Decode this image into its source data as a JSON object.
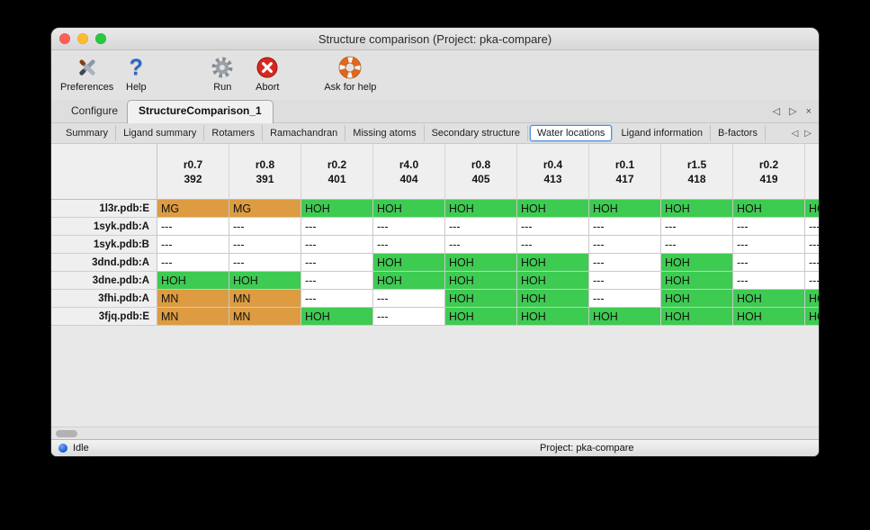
{
  "colors": {
    "water_cell": "#3ecb52",
    "metal_cell": "#dd9c41",
    "absent_cell": "#ffffff",
    "close_button": "#ff5f57",
    "minimize_button": "#febc2e",
    "zoom_button": "#28c840",
    "selected_subtab_border": "#4f8fdd",
    "status_dot": "#1d5fd6"
  },
  "window": {
    "title": "Structure comparison (Project: pka-compare)"
  },
  "toolbar": {
    "items": [
      {
        "label": "Preferences"
      },
      {
        "label": "Help"
      },
      {
        "label": "Run"
      },
      {
        "label": "Abort"
      },
      {
        "label": "Ask for help"
      }
    ]
  },
  "icons": {
    "nav_prev": "◁",
    "nav_next": "▷",
    "close_tab": "×",
    "help_glyph": "?"
  },
  "main_tabs": {
    "items": [
      {
        "label": "Configure"
      },
      {
        "label": "StructureComparison_1"
      }
    ]
  },
  "sub_tabs": {
    "items": [
      {
        "label": "Summary"
      },
      {
        "label": "Ligand summary"
      },
      {
        "label": "Rotamers"
      },
      {
        "label": "Ramachandran"
      },
      {
        "label": "Missing atoms"
      },
      {
        "label": "Secondary structure"
      },
      {
        "label": "Water locations",
        "selected": true
      },
      {
        "label": "Ligand information"
      },
      {
        "label": "B-factors"
      }
    ]
  },
  "table": {
    "columns": [
      {
        "line1": "r0.7",
        "line2": "392"
      },
      {
        "line1": "r0.8",
        "line2": "391"
      },
      {
        "line1": "r0.2",
        "line2": "401"
      },
      {
        "line1": "r4.0",
        "line2": "404"
      },
      {
        "line1": "r0.8",
        "line2": "405"
      },
      {
        "line1": "r0.4",
        "line2": "413"
      },
      {
        "line1": "r0.1",
        "line2": "417"
      },
      {
        "line1": "r1.5",
        "line2": "418"
      },
      {
        "line1": "r0.2",
        "line2": "419"
      },
      {
        "line1": "",
        "line2": ""
      }
    ],
    "rows": [
      {
        "label": "1l3r.pdb:E",
        "cells": [
          {
            "text": "MG",
            "type": "metal"
          },
          {
            "text": "MG",
            "type": "metal"
          },
          {
            "text": "HOH",
            "type": "water"
          },
          {
            "text": "HOH",
            "type": "water"
          },
          {
            "text": "HOH",
            "type": "water"
          },
          {
            "text": "HOH",
            "type": "water"
          },
          {
            "text": "HOH",
            "type": "water"
          },
          {
            "text": "HOH",
            "type": "water"
          },
          {
            "text": "HOH",
            "type": "water"
          },
          {
            "text": "HOH",
            "type": "water"
          }
        ]
      },
      {
        "label": "1syk.pdb:A",
        "cells": [
          {
            "text": "---",
            "type": "absent"
          },
          {
            "text": "---",
            "type": "absent"
          },
          {
            "text": "---",
            "type": "absent"
          },
          {
            "text": "---",
            "type": "absent"
          },
          {
            "text": "---",
            "type": "absent"
          },
          {
            "text": "---",
            "type": "absent"
          },
          {
            "text": "---",
            "type": "absent"
          },
          {
            "text": "---",
            "type": "absent"
          },
          {
            "text": "---",
            "type": "absent"
          },
          {
            "text": "---",
            "type": "absent"
          }
        ]
      },
      {
        "label": "1syk.pdb:B",
        "cells": [
          {
            "text": "---",
            "type": "absent"
          },
          {
            "text": "---",
            "type": "absent"
          },
          {
            "text": "---",
            "type": "absent"
          },
          {
            "text": "---",
            "type": "absent"
          },
          {
            "text": "---",
            "type": "absent"
          },
          {
            "text": "---",
            "type": "absent"
          },
          {
            "text": "---",
            "type": "absent"
          },
          {
            "text": "---",
            "type": "absent"
          },
          {
            "text": "---",
            "type": "absent"
          },
          {
            "text": "---",
            "type": "absent"
          }
        ]
      },
      {
        "label": "3dnd.pdb:A",
        "cells": [
          {
            "text": "---",
            "type": "absent"
          },
          {
            "text": "---",
            "type": "absent"
          },
          {
            "text": "---",
            "type": "absent"
          },
          {
            "text": "HOH",
            "type": "water"
          },
          {
            "text": "HOH",
            "type": "water"
          },
          {
            "text": "HOH",
            "type": "water"
          },
          {
            "text": "---",
            "type": "absent"
          },
          {
            "text": "HOH",
            "type": "water"
          },
          {
            "text": "---",
            "type": "absent"
          },
          {
            "text": "---",
            "type": "absent"
          }
        ]
      },
      {
        "label": "3dne.pdb:A",
        "cells": [
          {
            "text": "HOH",
            "type": "water"
          },
          {
            "text": "HOH",
            "type": "water"
          },
          {
            "text": "---",
            "type": "absent"
          },
          {
            "text": "HOH",
            "type": "water"
          },
          {
            "text": "HOH",
            "type": "water"
          },
          {
            "text": "HOH",
            "type": "water"
          },
          {
            "text": "---",
            "type": "absent"
          },
          {
            "text": "HOH",
            "type": "water"
          },
          {
            "text": "---",
            "type": "absent"
          },
          {
            "text": "---",
            "type": "absent"
          }
        ]
      },
      {
        "label": "3fhi.pdb:A",
        "cells": [
          {
            "text": "MN",
            "type": "metal"
          },
          {
            "text": "MN",
            "type": "metal"
          },
          {
            "text": "---",
            "type": "absent"
          },
          {
            "text": "---",
            "type": "absent"
          },
          {
            "text": "HOH",
            "type": "water"
          },
          {
            "text": "HOH",
            "type": "water"
          },
          {
            "text": "---",
            "type": "absent"
          },
          {
            "text": "HOH",
            "type": "water"
          },
          {
            "text": "HOH",
            "type": "water"
          },
          {
            "text": "HOH",
            "type": "water"
          }
        ]
      },
      {
        "label": "3fjq.pdb:E",
        "cells": [
          {
            "text": "MN",
            "type": "metal"
          },
          {
            "text": "MN",
            "type": "metal"
          },
          {
            "text": "HOH",
            "type": "water"
          },
          {
            "text": "---",
            "type": "absent"
          },
          {
            "text": "HOH",
            "type": "water"
          },
          {
            "text": "HOH",
            "type": "water"
          },
          {
            "text": "HOH",
            "type": "water"
          },
          {
            "text": "HOH",
            "type": "water"
          },
          {
            "text": "HOH",
            "type": "water"
          },
          {
            "text": "HOH",
            "type": "water"
          }
        ]
      }
    ]
  },
  "statusbar": {
    "state": "Idle",
    "project": "Project: pka-compare"
  }
}
